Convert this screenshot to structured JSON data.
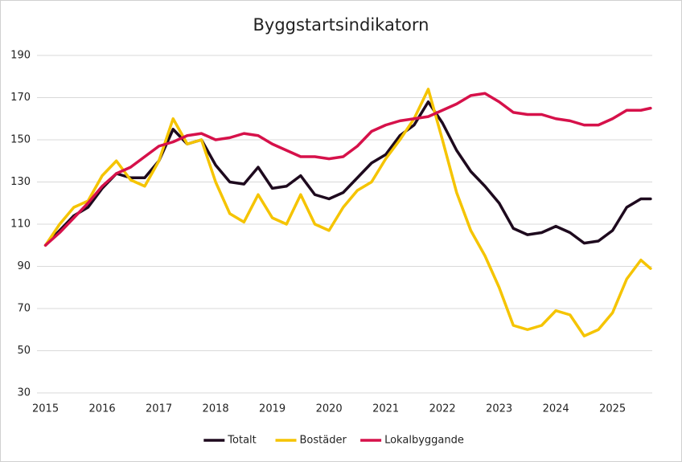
{
  "chart_data": {
    "type": "line",
    "title": "Byggstartsindikatorn",
    "x": [
      2015,
      2015.25,
      2015.5,
      2015.75,
      2016,
      2016.25,
      2016.5,
      2016.75,
      2017,
      2017.25,
      2017.5,
      2017.75,
      2018,
      2018.25,
      2018.5,
      2018.75,
      2019,
      2019.25,
      2019.5,
      2019.75,
      2020,
      2020.25,
      2020.5,
      2020.75,
      2021,
      2021.25,
      2021.5,
      2021.75,
      2022,
      2022.25,
      2022.5,
      2022.75,
      2023,
      2023.25,
      2023.5,
      2023.75,
      2024,
      2024.25,
      2024.5,
      2024.75,
      2025,
      2025.25,
      2025.5,
      2025.67
    ],
    "series": [
      {
        "name": "Totalt",
        "color": "#1e0a1e",
        "values": [
          100,
          107,
          114,
          118,
          127,
          134,
          132,
          132,
          140,
          155,
          148,
          150,
          138,
          130,
          129,
          137,
          127,
          128,
          133,
          124,
          122,
          125,
          132,
          139,
          143,
          152,
          157,
          168,
          158,
          145,
          135,
          128,
          120,
          108,
          105,
          106,
          109,
          106,
          101,
          102,
          107,
          118,
          122,
          122
        ]
      },
      {
        "name": "Bostäder",
        "color": "#f5c400",
        "values": [
          100,
          110,
          118,
          121,
          133,
          140,
          131,
          128,
          140,
          160,
          148,
          150,
          130,
          115,
          111,
          124,
          113,
          110,
          124,
          110,
          107,
          118,
          126,
          130,
          141,
          150,
          160,
          174,
          150,
          125,
          107,
          95,
          80,
          62,
          60,
          62,
          69,
          67,
          57,
          60,
          68,
          84,
          93,
          89
        ]
      },
      {
        "name": "Lokalbyggande",
        "color": "#d6114a",
        "values": [
          100,
          106,
          113,
          120,
          128,
          134,
          137,
          142,
          147,
          149,
          152,
          153,
          150,
          151,
          153,
          152,
          148,
          145,
          142,
          142,
          141,
          142,
          147,
          154,
          157,
          159,
          160,
          161,
          164,
          167,
          171,
          172,
          168,
          163,
          162,
          162,
          160,
          159,
          157,
          157,
          160,
          164,
          164,
          165
        ]
      }
    ],
    "xlim": [
      2014.85,
      2025.7
    ],
    "xticks": [
      2015,
      2016,
      2017,
      2018,
      2019,
      2020,
      2021,
      2022,
      2023,
      2024,
      2025
    ],
    "ylim": [
      30,
      190
    ],
    "yticks": [
      30,
      50,
      70,
      90,
      110,
      130,
      150,
      170,
      190
    ],
    "grid": true,
    "legend": "bottom"
  }
}
